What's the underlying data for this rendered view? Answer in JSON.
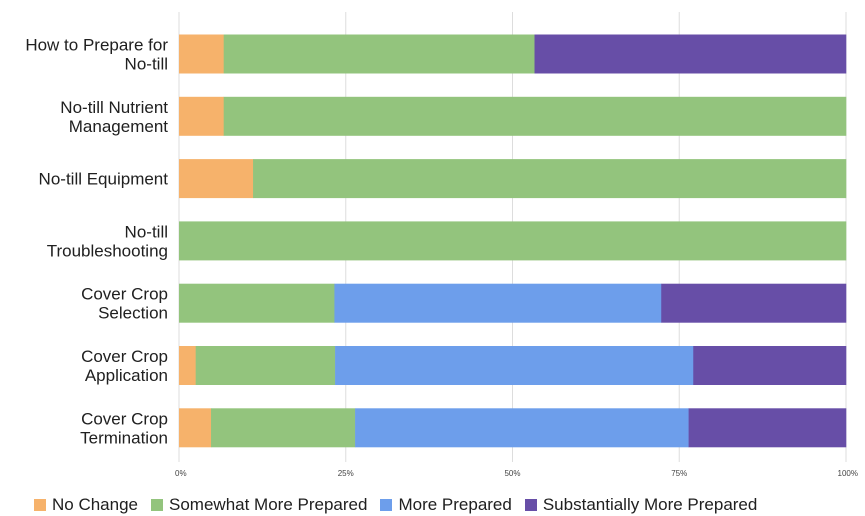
{
  "chart_data": {
    "type": "bar",
    "orientation": "horizontal",
    "stacked": true,
    "normalized": true,
    "categories": [
      [
        "How to Prepare for",
        "No-till"
      ],
      [
        "No-till Nutrient",
        "Management"
      ],
      [
        "No-till Equipment"
      ],
      [
        "No-till",
        "Troubleshooting"
      ],
      [
        "Cover Crop",
        "Selection"
      ],
      [
        "Cover Crop",
        "Application"
      ],
      [
        "Cover Crop",
        "Termination"
      ]
    ],
    "series": [
      {
        "name": "No Change",
        "color": "#f6b26b",
        "values": [
          6.7,
          6.7,
          11.1,
          0,
          0,
          2.5,
          4.8
        ]
      },
      {
        "name": "Somewhat More Prepared",
        "color": "#93c47d",
        "values": [
          46.6,
          93.3,
          88.9,
          100,
          23.3,
          20.9,
          21.6
        ]
      },
      {
        "name": "More Prepared",
        "color": "#6d9eeb",
        "values": [
          0,
          0,
          0,
          0,
          49.0,
          53.7,
          50.0
        ]
      },
      {
        "name": "Substantially More Prepared",
        "color": "#674ea7",
        "values": [
          46.7,
          0,
          0,
          0,
          27.7,
          22.9,
          23.6
        ]
      }
    ],
    "xlim": [
      0,
      100
    ],
    "xticks": [
      0,
      25,
      50,
      75,
      100
    ],
    "xtick_labels": [
      "0%",
      "25%",
      "50%",
      "75%",
      "100%"
    ],
    "title": "",
    "xlabel": "",
    "ylabel": "",
    "grid": true,
    "legend_position": "bottom"
  }
}
